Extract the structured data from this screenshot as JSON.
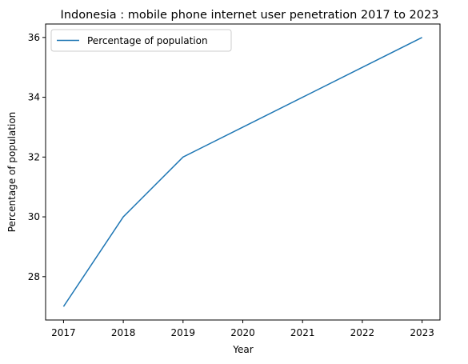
{
  "chart_data": {
    "type": "line",
    "title": "Indonesia : mobile phone internet user penetration 2017 to 2023",
    "xlabel": "Year",
    "ylabel": "Percentage of population",
    "x": [
      2017,
      2018,
      2019,
      2020,
      2021,
      2022,
      2023
    ],
    "series": [
      {
        "name": "Percentage of population",
        "values": [
          27,
          30,
          32,
          33,
          34,
          35,
          36
        ],
        "color": "#1f77b4"
      }
    ],
    "xlim": [
      2016.7,
      2023.3
    ],
    "ylim": [
      26.55,
      36.45
    ],
    "xticks": [
      "2017",
      "2018",
      "2019",
      "2020",
      "2021",
      "2022",
      "2023"
    ],
    "yticks": [
      "28",
      "30",
      "32",
      "34",
      "36"
    ],
    "grid": false,
    "legend_position": "upper-left"
  }
}
